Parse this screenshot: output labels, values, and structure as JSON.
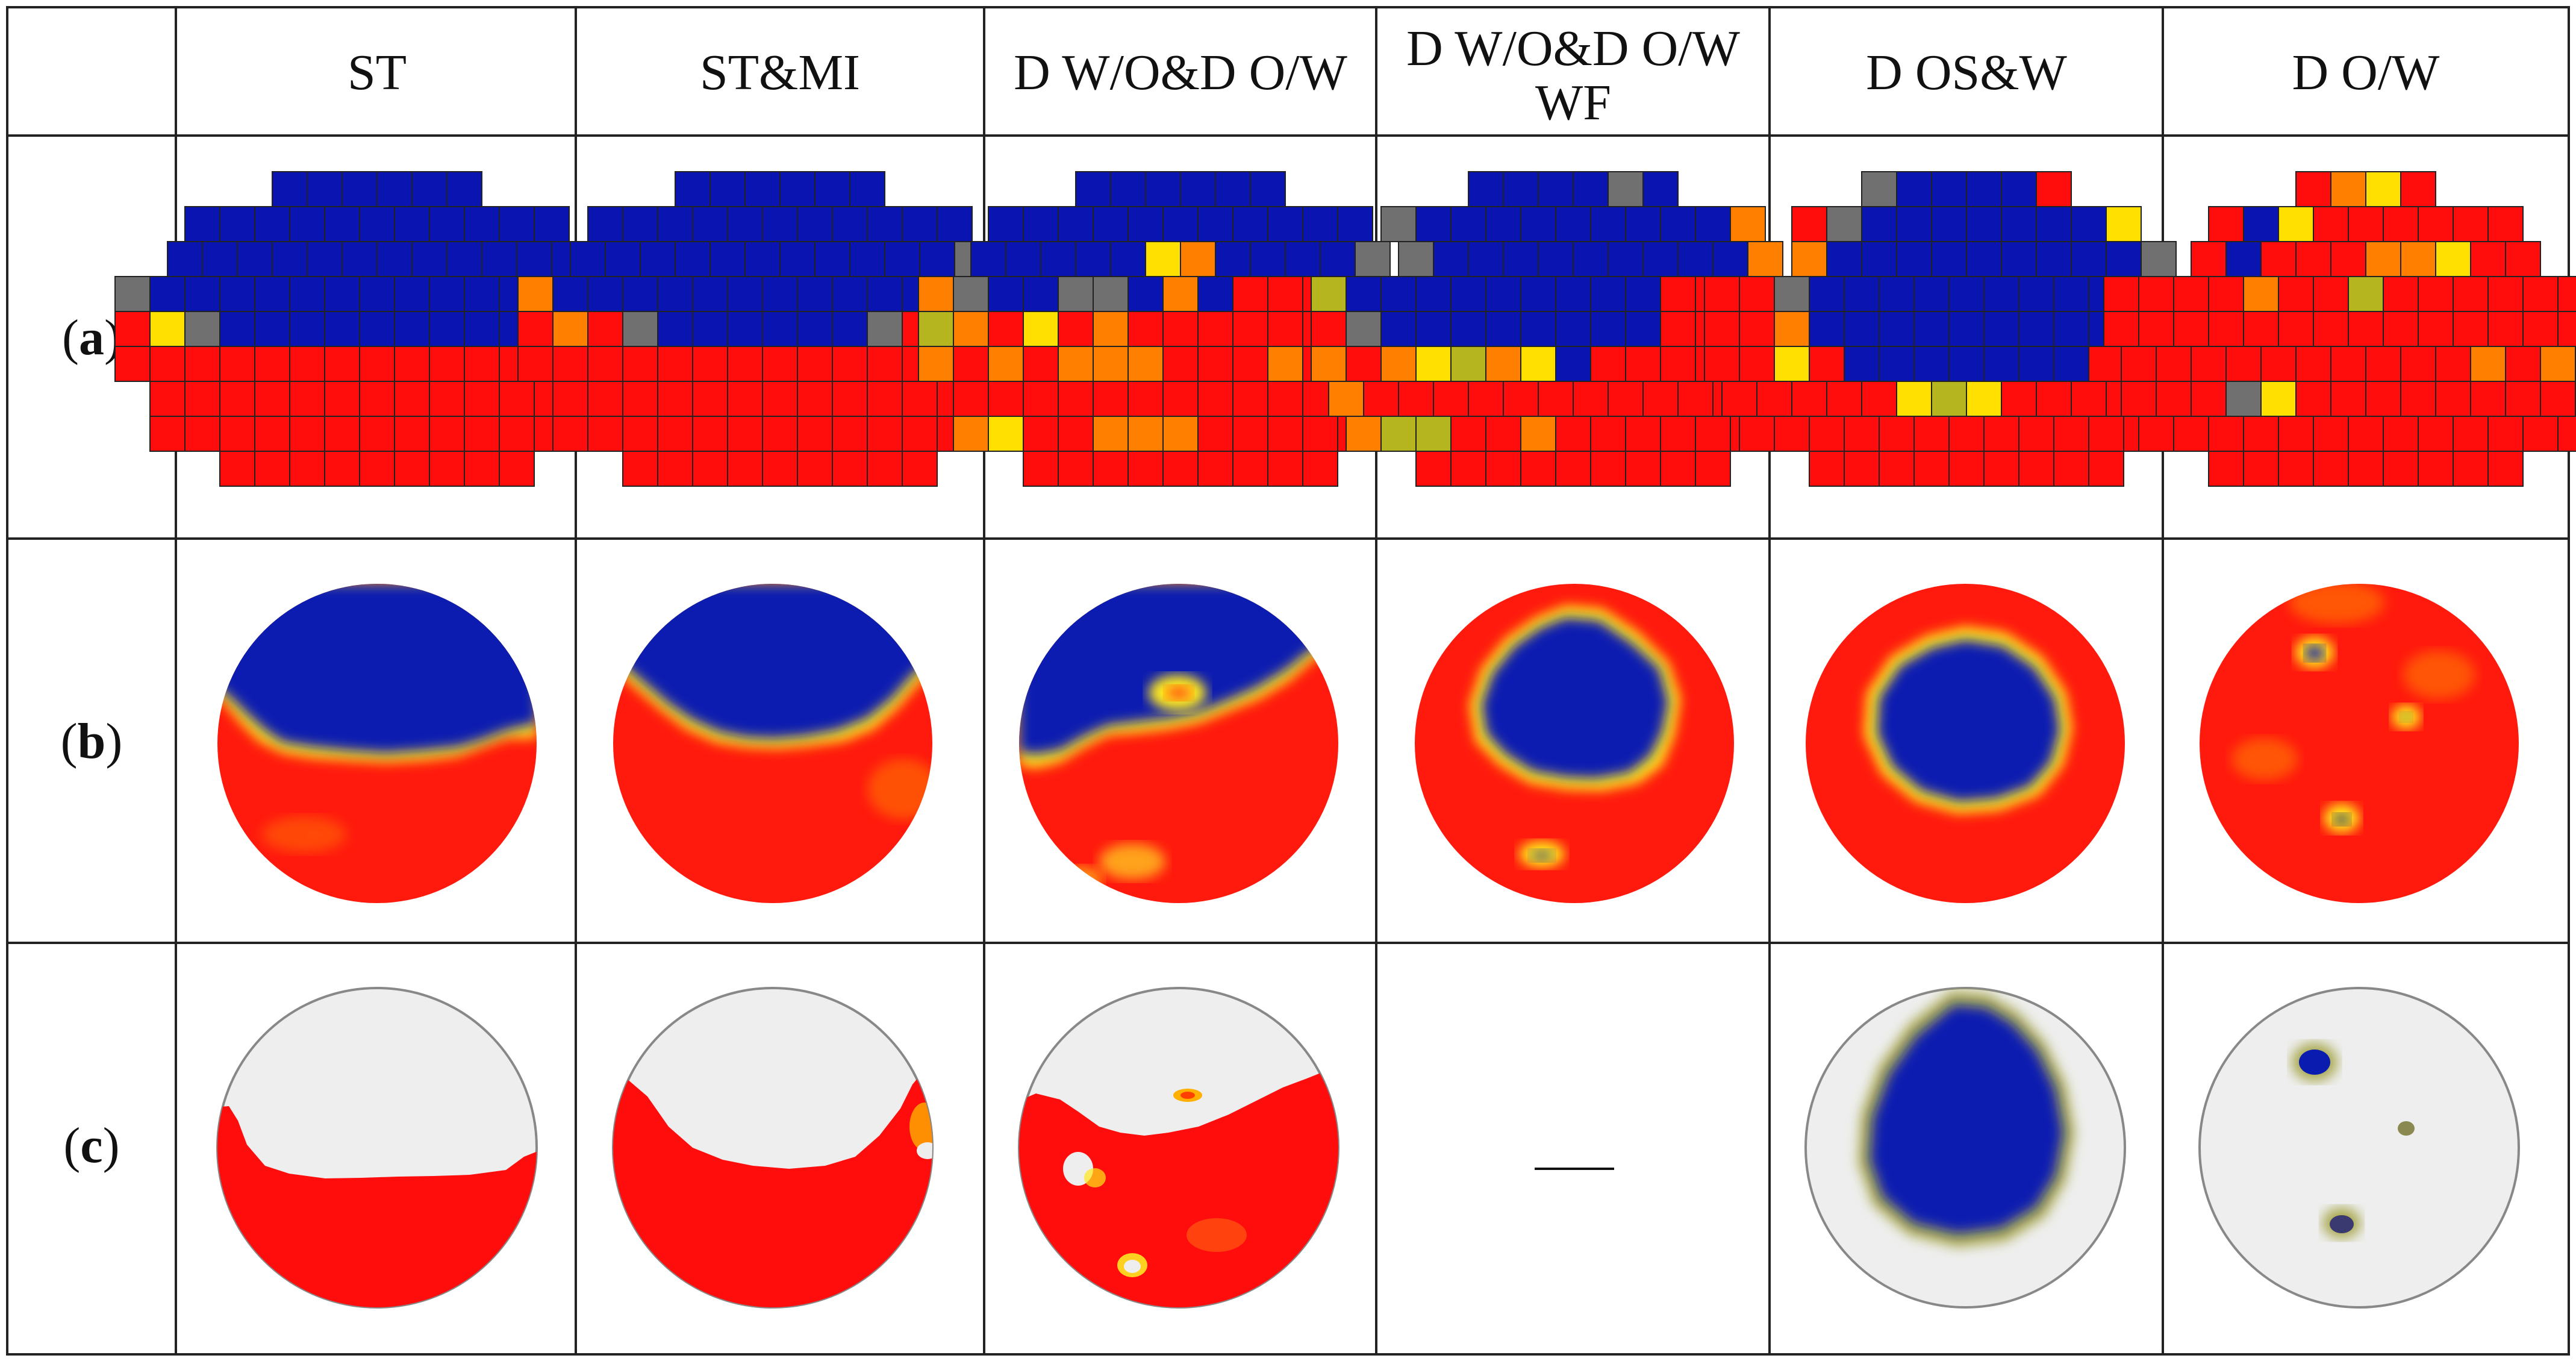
{
  "table": {
    "columns": [
      "",
      "ST",
      "ST&MI",
      "D W/O&D O/W",
      "D W/O&D O/W",
      "D OS&W",
      "D O/W"
    ],
    "column_header_line2": {
      "4": "WF"
    },
    "rows": [
      {
        "id": "a",
        "open": "(",
        "letter": "a",
        "close": ")"
      },
      {
        "id": "b",
        "open": "(",
        "letter": "b",
        "close": ")"
      },
      {
        "id": "c",
        "open": "(",
        "letter": "c",
        "close": ")"
      }
    ],
    "empty_cell": {
      "row": "c",
      "column": 4,
      "text": "—"
    }
  },
  "colors": {
    "water": "#0a14b0",
    "oil": "#ff0d0d",
    "orange": "#ff8000",
    "gold": "#ffb000",
    "yellow": "#ffe000",
    "olive": "#b5b520",
    "grey": "#707070",
    "empty_phase": "#eeeeee",
    "grid": "#222222"
  },
  "grids": [
    [
      "....BBBBBB....",
      "..BBBBBBBBBBB..",
      "..BBBBBBBBBBBBB.",
      "GBBBBBBBBBBBBBB",
      "RYGBBBBBBBBBBOR",
      "RRRRRRRRRRRRRRR",
      ".RRRRRRRRRRRRR.",
      ".RRRRRRRRRRRRR.",
      "...RRRRRRRRR..."
    ],
    [
      "....BBBBBB....",
      "..BBBBBBBBBBB..",
      "..BBBBBBBBBBBGB.",
      "OBBBBBBBBBBBBYO",
      "RORGBBBBBBGRRYO",
      "RRRRRRRRRRRRRRR",
      ".RRRRRRRRRRRRR.",
      ".RRRRRRRRRRRRR.",
      "...RRRRRRRRR..."
    ],
    [
      "....BBBBBB....",
      "..BBBBBBBBBBB..",
      "..BBBBBYOBBBBG..",
      "OGBBGGBOBRRRRRR",
      "LORYRORRRRRRRRR",
      "OROROOORRRORRRR",
      ".RRRRRRRRRRRRR.",
      ".OYRROOORRRRRR.",
      "...RRRRRRRRR..."
    ],
    [
      "....BBBBGB....",
      "..GBBBBBBBBBO..",
      "..GBBBBBBBBBO.",
      "LBBBBBBBBBRRRRR",
      "RGBBBBBBBBRRRRR",
      "OROYLOYBRRRRRRR",
      ".ORRRRRRRRRRRRR.",
      ".OLLRRORRRRRRR.",
      "...RRRRRRRRR..."
    ],
    [
      "....GBBBBR....",
      "..RGBBBBBBBY..",
      "..OBBBBBBBBBG.",
      "RRGBBBBBBBBBBRR",
      "RROBBBBBBBBBBGR",
      "RRYRBBBBBBBRRRR",
      ".RRRRRYLYRRRRRR.",
      ".RRRRRRRRRRRRR.",
      "...RRRRRRRRR..."
    ],
    [
      "....ROYR....",
      "..RBYRRRRRR..",
      "..RBRRROOYRR..",
      "RRRRORRLRRRRRRR",
      "RRRRRRRRRRRRRRR",
      "RRRRRRRRRROROR",
      ".RRRGYRRRRRRRRR.",
      ".RRRRRRRRRRRRR.",
      "...RRRRRRRRR..."
    ]
  ],
  "contours": [
    {
      "front": [
        [
          -1,
          0.2
        ],
        [
          -0.8,
          0.22
        ],
        [
          -0.6,
          0.33
        ],
        [
          -0.4,
          0.36
        ],
        [
          -0.2,
          0.35
        ],
        [
          0,
          0.34
        ],
        [
          0.2,
          0.32
        ],
        [
          0.4,
          0.28
        ],
        [
          0.6,
          0.2
        ],
        [
          0.8,
          0.14
        ],
        [
          1,
          0.08
        ]
      ],
      "blobs": []
    },
    {
      "front": [
        [
          -1,
          -0.05
        ],
        [
          -0.8,
          0.02
        ],
        [
          -0.6,
          0.15
        ],
        [
          -0.4,
          0.25
        ],
        [
          -0.2,
          0.32
        ],
        [
          0,
          0.33
        ],
        [
          0.2,
          0.31
        ],
        [
          0.4,
          0.22
        ],
        [
          0.6,
          0.1
        ],
        [
          0.8,
          -0.1
        ],
        [
          1,
          -0.3
        ]
      ],
      "blobs": []
    },
    {
      "front": [
        [
          -1,
          -0.1
        ],
        [
          -0.8,
          -0.05
        ],
        [
          -0.6,
          -0.02
        ],
        [
          -0.4,
          0.02
        ],
        [
          -0.2,
          0.06
        ],
        [
          0,
          0.05
        ],
        [
          0.2,
          0.02
        ],
        [
          0.4,
          -0.06
        ],
        [
          0.6,
          -0.15
        ],
        [
          0.8,
          -0.3
        ],
        [
          1,
          -0.45
        ]
      ],
      "blobs": [
        [
          0,
          -0.28,
          0.12
        ]
      ]
    },
    {
      "center": [
        -0.05,
        -0.15
      ],
      "radius": 0.52,
      "blobs": [
        [
          -0.3,
          0.62,
          0.1
        ]
      ]
    },
    {
      "center": [
        0,
        -0.02
      ],
      "radius": 0.52,
      "blobs": []
    },
    {
      "center": null,
      "radius": 0,
      "blobs": [
        [
          -0.3,
          -0.45,
          0.12
        ],
        [
          0.3,
          -0.05,
          0.1
        ],
        [
          -0.1,
          0.5,
          0.12
        ]
      ]
    }
  ]
}
